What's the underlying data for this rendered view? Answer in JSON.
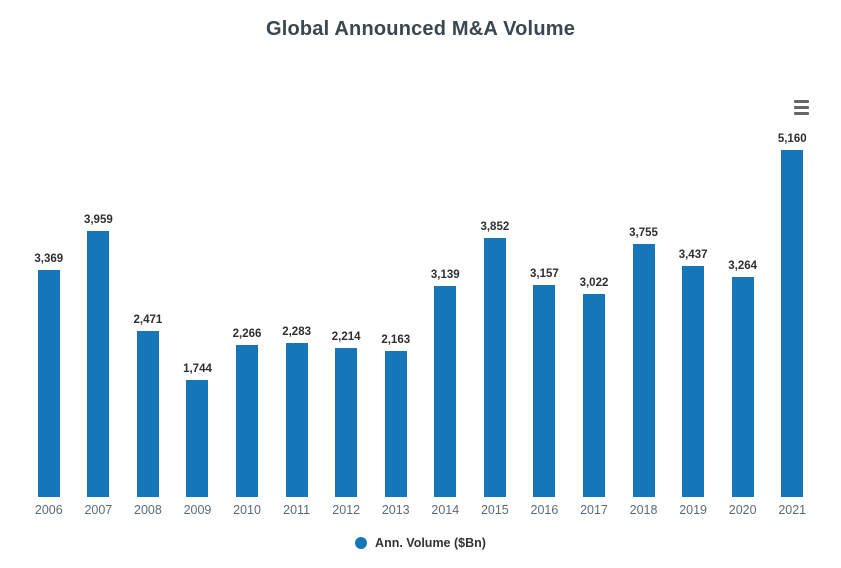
{
  "chart_data": {
    "type": "bar",
    "title": "Global Announced M&A Volume",
    "categories": [
      "2006",
      "2007",
      "2008",
      "2009",
      "2010",
      "2011",
      "2012",
      "2013",
      "2014",
      "2015",
      "2016",
      "2017",
      "2018",
      "2019",
      "2020",
      "2021"
    ],
    "series": [
      {
        "name": "Ann. Volume ($Bn)",
        "values": [
          3369,
          3959,
          2471,
          1744,
          2266,
          2283,
          2214,
          2163,
          3139,
          3852,
          3157,
          3022,
          3755,
          3437,
          3264,
          5160
        ]
      }
    ],
    "xlabel": "",
    "ylabel": "",
    "ylim": [
      0,
      5200
    ],
    "grid": false,
    "y_axis_visible": false,
    "data_labels": true,
    "legend_position": "bottom",
    "legend_label": "Ann. Volume ($Bn)",
    "bar_color": "#1776b8",
    "title_color": "#3b4650",
    "axis_label_color": "#5c6b77"
  },
  "controls": {
    "context_menu_icon": "hamburger-menu-icon"
  }
}
